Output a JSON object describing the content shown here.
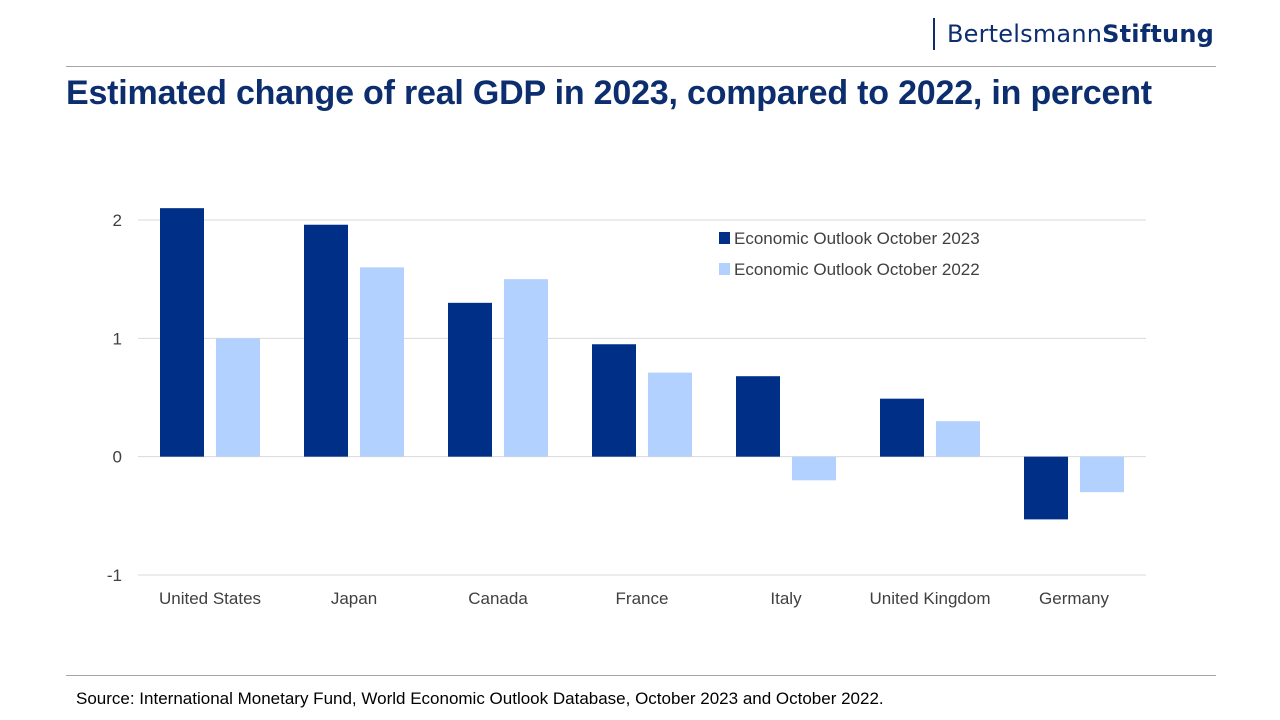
{
  "brand": {
    "name_regular": "Bertelsmann",
    "name_bold": "Stiftung"
  },
  "title": "Estimated change of real GDP in 2023, compared to 2022, in percent",
  "source": "Source: International Monetary Fund, World Economic Outlook Database, October 2023 and October 2022.",
  "chart_data": {
    "type": "bar",
    "title": "Estimated change of real GDP in 2023, compared to 2022, in percent",
    "xlabel": "",
    "ylabel": "",
    "categories": [
      "United States",
      "Japan",
      "Canada",
      "France",
      "Italy",
      "United Kingdom",
      "Germany"
    ],
    "series": [
      {
        "name": "Economic Outlook October 2023",
        "color": "#002f87",
        "values": [
          2.1,
          1.96,
          1.3,
          0.95,
          0.68,
          0.49,
          -0.53
        ]
      },
      {
        "name": "Economic Outlook October 2022",
        "color": "#b3d1ff",
        "values": [
          1.0,
          1.6,
          1.5,
          0.71,
          -0.2,
          0.3,
          -0.3
        ]
      }
    ],
    "ylim": [
      -1,
      2
    ],
    "yticks": [
      2,
      1,
      0,
      -1
    ],
    "grid": true,
    "legend": "top-right"
  }
}
